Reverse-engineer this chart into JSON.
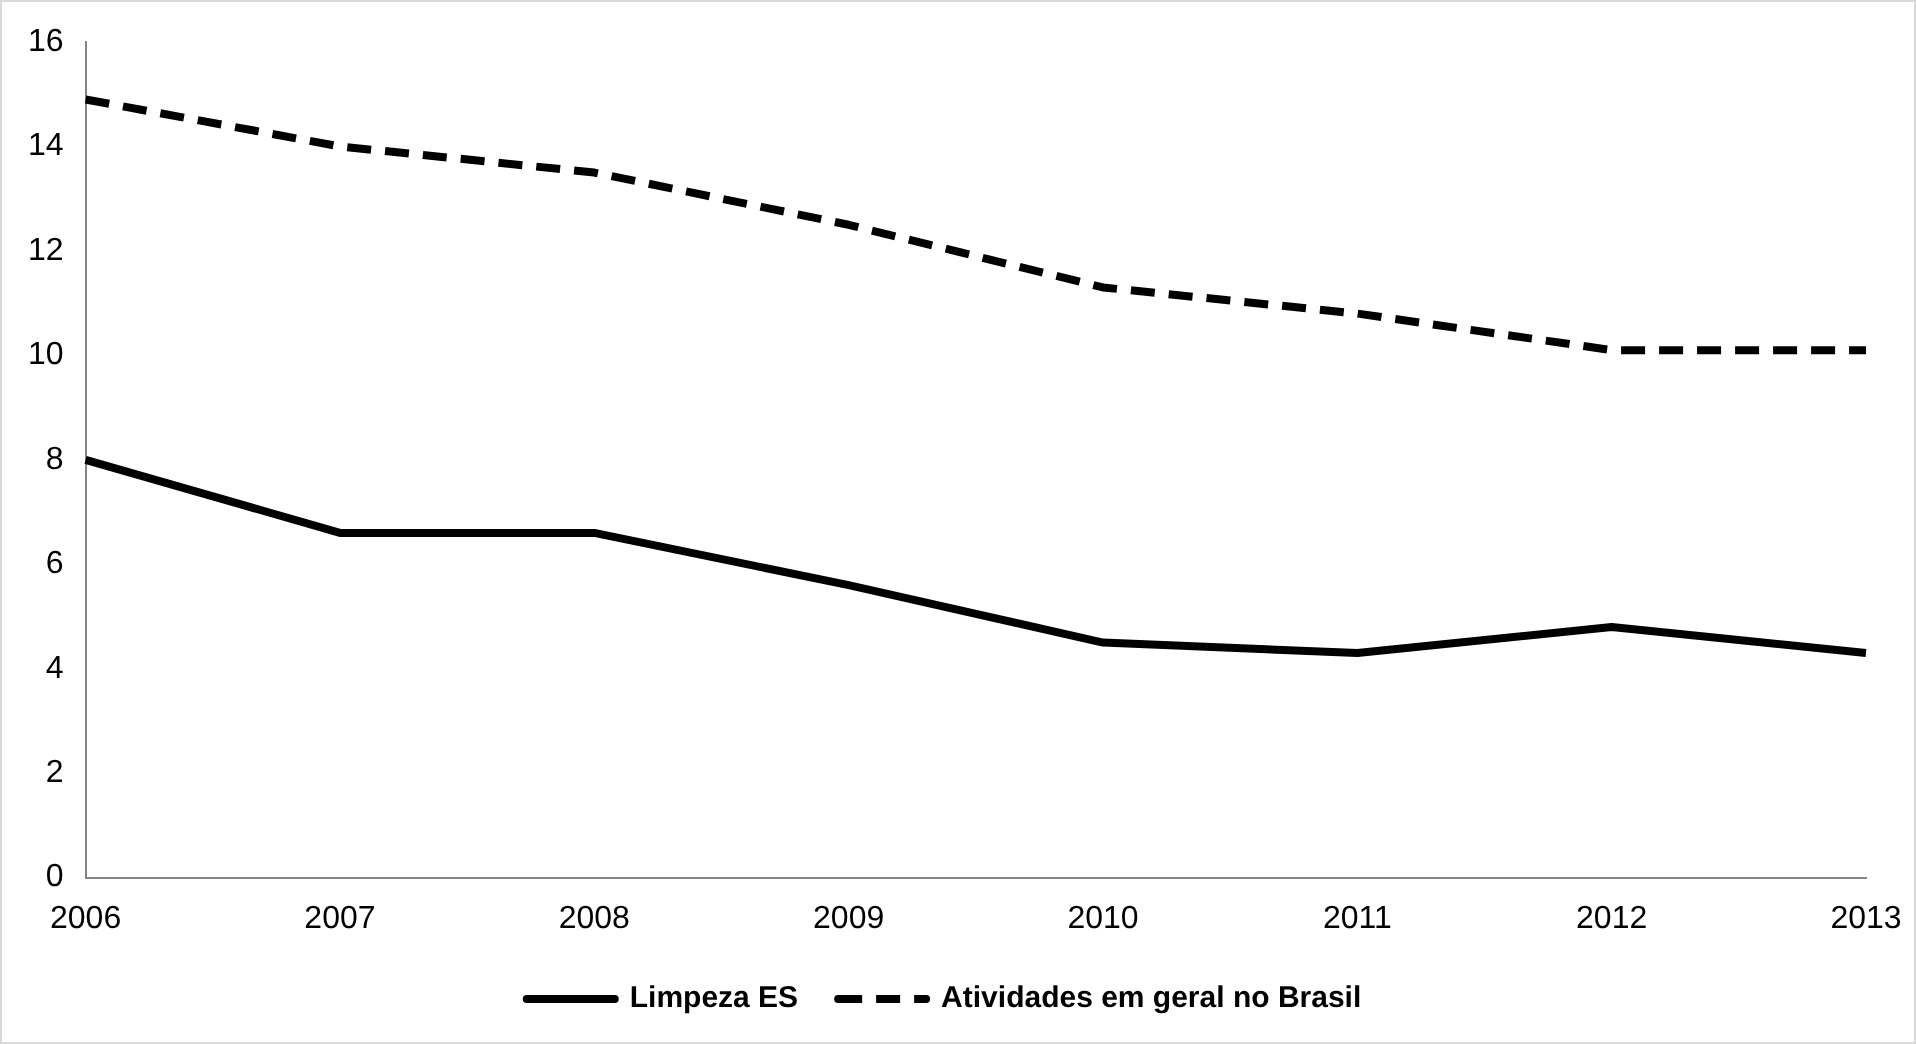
{
  "chart_data": {
    "type": "line",
    "categories": [
      "2006",
      "2007",
      "2008",
      "2009",
      "2010",
      "2011",
      "2012",
      "2013"
    ],
    "series": [
      {
        "name": "Limpeza ES",
        "color": "#000000",
        "line_style": "solid",
        "values": [
          8.0,
          6.6,
          6.6,
          5.6,
          4.5,
          4.3,
          4.8,
          4.3
        ]
      },
      {
        "name": "Atividades em geral no Brasil",
        "color": "#000000",
        "line_style": "dashed",
        "values": [
          14.9,
          14.0,
          13.5,
          12.5,
          11.3,
          10.8,
          10.1,
          10.1
        ]
      }
    ],
    "ylim": [
      0,
      16
    ],
    "yticks": [
      0,
      2,
      4,
      6,
      8,
      10,
      12,
      14,
      16
    ],
    "grid": false,
    "legend": "bottom",
    "marker": "none"
  }
}
